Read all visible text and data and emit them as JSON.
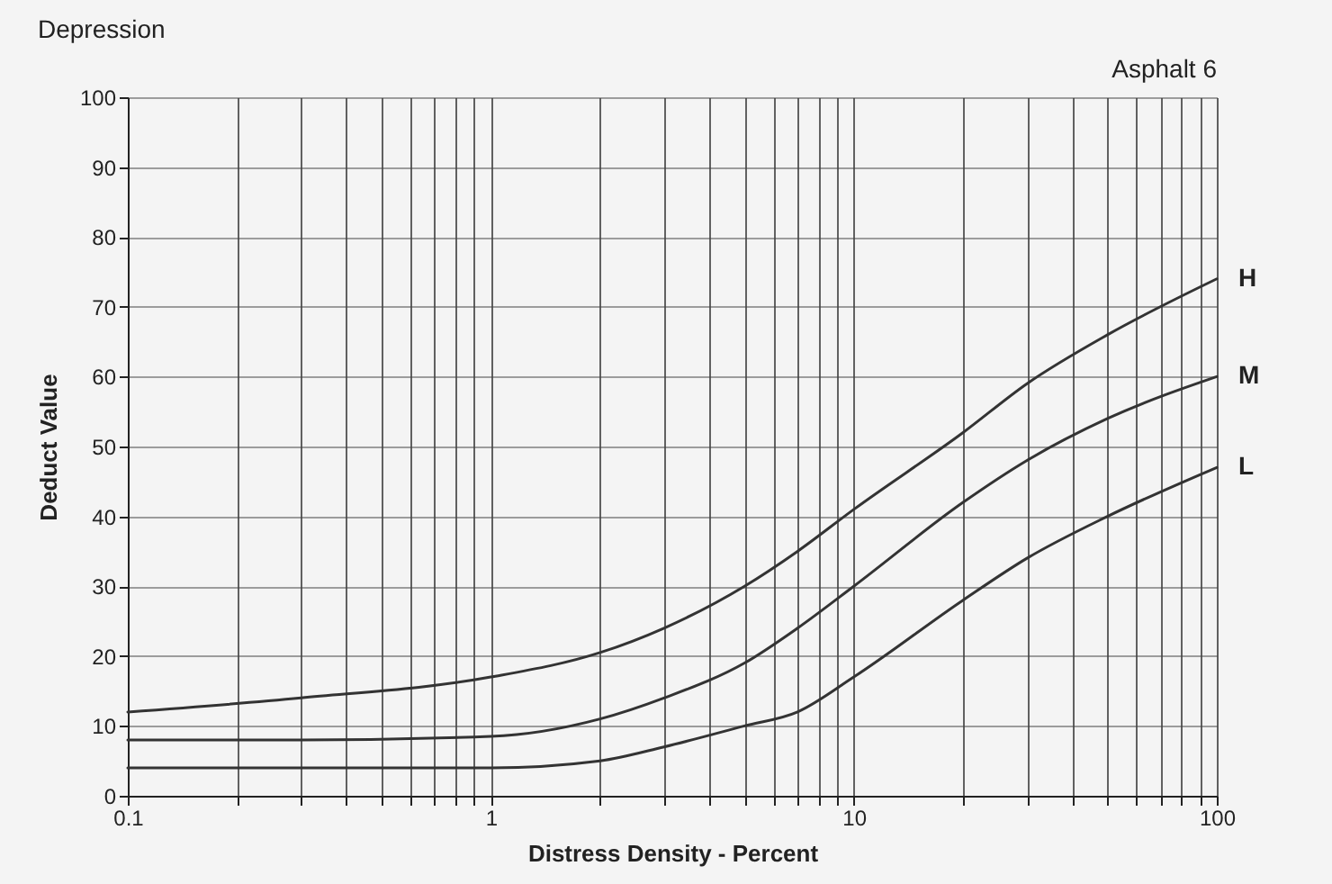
{
  "chart_data": {
    "type": "line",
    "title": "Depression",
    "xlabel": "Distress Density - Percent",
    "ylabel": "Deduct Value",
    "annotations": [
      "Asphalt 6"
    ],
    "log": "x",
    "grid": true,
    "legend": false,
    "marker": "none",
    "line_style": "solid",
    "xlim": [
      0.1,
      100
    ],
    "ylim": [
      0,
      100
    ],
    "xticks": [
      0.1,
      {
        "value": 0.2,
        "label": null
      },
      {
        "value": 0.3,
        "label": null
      },
      {
        "value": 0.4,
        "label": null
      },
      {
        "value": 0.5,
        "label": null
      },
      {
        "value": 0.6,
        "label": null
      },
      {
        "value": 0.7,
        "label": null
      },
      {
        "value": 0.8,
        "label": null
      },
      {
        "value": 0.9,
        "label": null
      },
      1,
      {
        "value": 2,
        "label": null
      },
      {
        "value": 3,
        "label": null
      },
      {
        "value": 4,
        "label": null
      },
      {
        "value": 5,
        "label": null
      },
      {
        "value": 6,
        "label": null
      },
      {
        "value": 7,
        "label": null
      },
      {
        "value": 8,
        "label": null
      },
      {
        "value": 9,
        "label": null
      },
      10,
      {
        "value": 20,
        "label": null
      },
      {
        "value": 30,
        "label": null
      },
      {
        "value": 40,
        "label": null
      },
      {
        "value": 50,
        "label": null
      },
      {
        "value": 60,
        "label": null
      },
      {
        "value": 70,
        "label": null
      },
      {
        "value": 80,
        "label": null
      },
      {
        "value": 90,
        "label": null
      },
      100
    ],
    "yticks": [
      0,
      10,
      20,
      30,
      40,
      50,
      60,
      70,
      80,
      90,
      100
    ],
    "x": [
      0.1,
      0.3,
      1,
      2,
      3,
      5,
      7,
      10,
      20,
      30,
      50,
      100
    ],
    "series": [
      {
        "name": "H",
        "color": "#333333",
        "values": [
          12,
          14,
          17,
          20.5,
          24,
          30,
          35,
          41,
          52,
          59,
          66,
          74
        ]
      },
      {
        "name": "M",
        "color": "#333333",
        "values": [
          8,
          8,
          8.5,
          11,
          14,
          19,
          24,
          30,
          42,
          48,
          54,
          60
        ]
      },
      {
        "name": "L",
        "color": "#333333",
        "values": [
          4,
          4,
          4,
          5,
          7,
          10,
          12,
          17,
          28,
          34,
          40,
          47
        ]
      }
    ]
  }
}
